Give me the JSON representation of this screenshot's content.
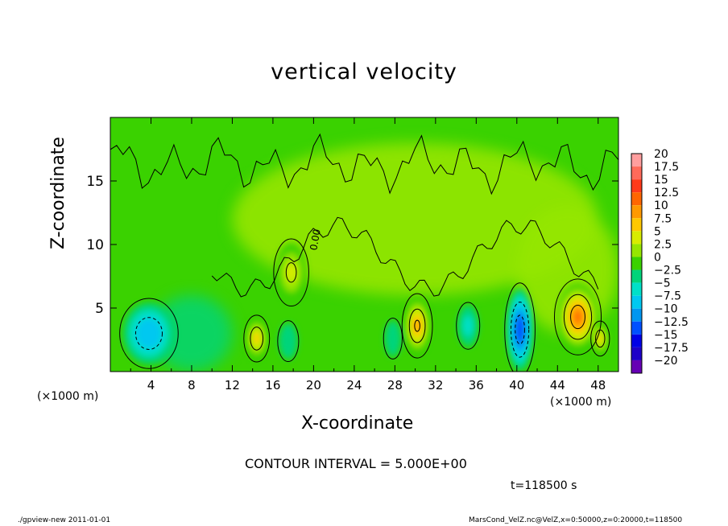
{
  "chart_data": {
    "type": "heatmap",
    "title": "vertical velocity",
    "xlabel": "X-coordinate",
    "ylabel": "Z-coordinate",
    "x_unit_left": "(×1000 m)",
    "x_unit_right": "(×1000 m)",
    "xlim": [
      0,
      50
    ],
    "ylim": [
      0,
      20
    ],
    "x_ticks": [
      4,
      8,
      12,
      16,
      20,
      24,
      28,
      32,
      36,
      40,
      44,
      48
    ],
    "y_ticks": [
      5,
      10,
      15
    ],
    "contour_interval_text": "CONTOUR INTERVAL = 5.000E+00",
    "time_text": "t=118500 s",
    "contour_zero_label": "0.00",
    "colorbar": {
      "levels": [
        "20",
        "17.5",
        "15",
        "12.5",
        "10",
        "7.5",
        "5",
        "2.5",
        "0",
        "−2.5",
        "−5",
        "−7.5",
        "−10",
        "−12.5",
        "−15",
        "−17.5",
        "−20"
      ],
      "colors": [
        "#ff9e9e",
        "#ff6a5a",
        "#ff3a1a",
        "#ff6600",
        "#ff9900",
        "#ffc800",
        "#d8ec00",
        "#96e600",
        "#3ad200",
        "#00d47a",
        "#00e0c8",
        "#00c8f0",
        "#0096f0",
        "#0050ff",
        "#0000e6",
        "#1e00c8",
        "#6600b4"
      ]
    },
    "features": [
      {
        "kind": "downdraft",
        "x": 3.8,
        "z": 3.0,
        "rx": 2.5,
        "rz": 2.4,
        "value": -8
      },
      {
        "kind": "updraft",
        "x": 14.4,
        "z": 2.6,
        "rx": 1.1,
        "rz": 1.6,
        "value": 9
      },
      {
        "kind": "updraft",
        "x": 17.8,
        "z": 7.8,
        "rx": 1.5,
        "rz": 2.3,
        "value": 5
      },
      {
        "kind": "downdraft",
        "x": 17.5,
        "z": 2.4,
        "rx": 0.9,
        "rz": 1.4,
        "value": -3
      },
      {
        "kind": "updraft",
        "x": 30.2,
        "z": 3.6,
        "rx": 1.3,
        "rz": 2.2,
        "value": 10
      },
      {
        "kind": "downdraft",
        "x": 27.8,
        "z": 2.6,
        "rx": 0.8,
        "rz": 1.4,
        "value": -3
      },
      {
        "kind": "downdraft",
        "x": 35.2,
        "z": 3.6,
        "rx": 1.0,
        "rz": 1.6,
        "value": -4
      },
      {
        "kind": "downdraft",
        "x": 40.3,
        "z": 3.3,
        "rx": 1.3,
        "rz": 3.2,
        "value": -13
      },
      {
        "kind": "updraft",
        "x": 46.0,
        "z": 4.3,
        "rx": 2.0,
        "rz": 2.6,
        "value": 13
      },
      {
        "kind": "updraft",
        "x": 48.2,
        "z": 2.6,
        "rx": 0.8,
        "rz": 1.2,
        "value": 9
      }
    ]
  },
  "footer": {
    "left": "./gpview-new   2011-01-01",
    "right": "MarsCond_VelZ.nc@VelZ,x=0:50000,z=0:20000,t=118500"
  }
}
